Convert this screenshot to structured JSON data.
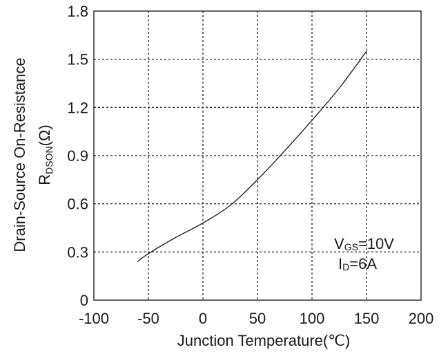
{
  "chart_data": {
    "type": "line",
    "xlabel": "Junction Temperature(℃)",
    "ylabel_line1": "Drain-Source On-Resistance",
    "ylabel_line2": {
      "main": "R",
      "sub": "DSON",
      "unit": "(Ω)"
    },
    "xlim": [
      -100,
      200
    ],
    "ylim": [
      0,
      1.8
    ],
    "x_ticks": [
      -100,
      -50,
      0,
      50,
      100,
      150,
      200
    ],
    "x_tick_labels": [
      "-100",
      "-50",
      "0",
      "50",
      "100",
      "150",
      "200"
    ],
    "y_ticks": [
      0,
      0.3,
      0.6,
      0.9,
      1.2,
      1.5,
      1.8
    ],
    "y_tick_labels": [
      "0",
      "0.3",
      "0.6",
      "0.9",
      "1.2",
      "1.5",
      "1.8"
    ],
    "grid": true,
    "series": [
      {
        "x": [
          -60,
          -50,
          -25,
          0,
          25,
          50,
          75,
          100,
          125,
          150
        ],
        "y": [
          0.24,
          0.29,
          0.39,
          0.48,
          0.59,
          0.75,
          0.93,
          1.12,
          1.32,
          1.55
        ]
      }
    ],
    "annotations": [
      {
        "main": "V",
        "sub": "GS",
        "rest": "=10V"
      },
      {
        "main": "I",
        "sub": "D",
        "rest": "=6A"
      }
    ]
  }
}
